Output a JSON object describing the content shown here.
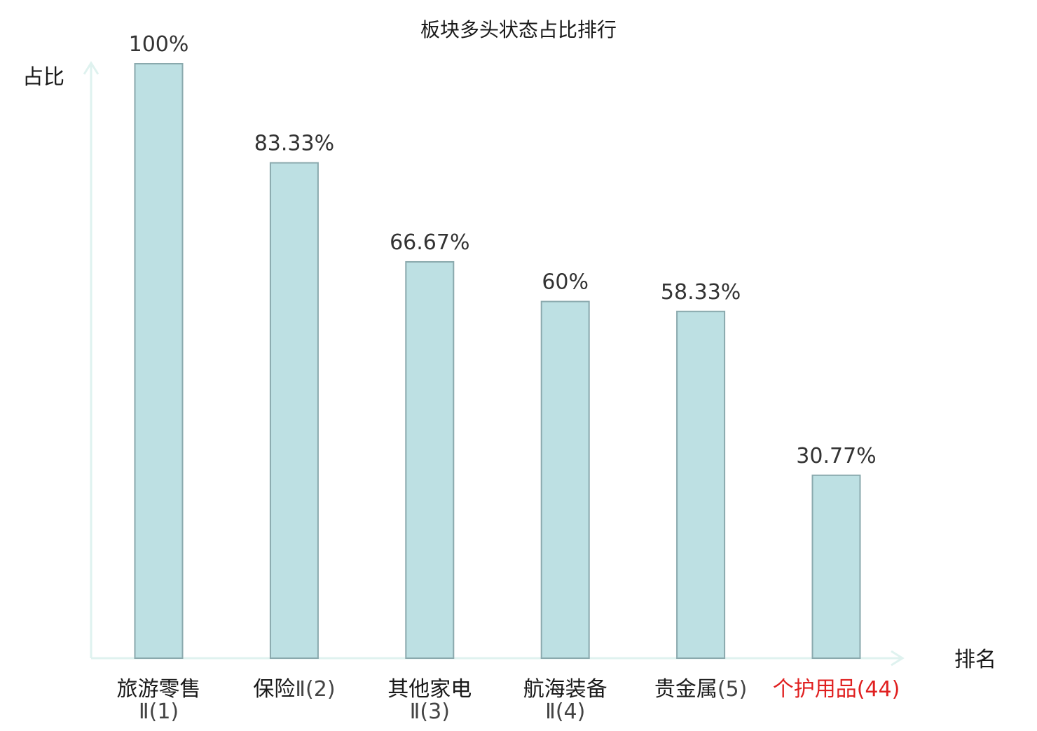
{
  "chart_data": {
    "type": "bar",
    "title": "板块多头状态占比排行",
    "ylabel": "占比",
    "xlabel": "排名",
    "ylim": [
      0,
      100
    ],
    "grid": false,
    "categories": [
      {
        "name": "旅游零售",
        "rank": "Ⅱ(1)",
        "two_line": true,
        "highlight": false
      },
      {
        "name": "保险",
        "rank": "Ⅱ(2)",
        "two_line": false,
        "highlight": false
      },
      {
        "name": "其他家电",
        "rank": "Ⅱ(3)",
        "two_line": true,
        "highlight": false
      },
      {
        "name": "航海装备",
        "rank": "Ⅱ(4)",
        "two_line": true,
        "highlight": false
      },
      {
        "name": "贵金属",
        "rank": "(5)",
        "two_line": false,
        "highlight": false
      },
      {
        "name": "个护用品",
        "rank": "(44)",
        "two_line": false,
        "highlight": true
      }
    ],
    "values": [
      100,
      83.33,
      66.67,
      60,
      58.33,
      30.77
    ],
    "value_labels": [
      "100%",
      "83.33%",
      "66.67%",
      "60%",
      "58.33%",
      "30.77%"
    ],
    "colors": {
      "bar_fill": "#bde0e3",
      "bar_stroke": "#8aa9ad",
      "axis": "#dff2ef",
      "label": "#1a1a1a",
      "rank": "#444444",
      "highlight": "#e02020"
    }
  }
}
